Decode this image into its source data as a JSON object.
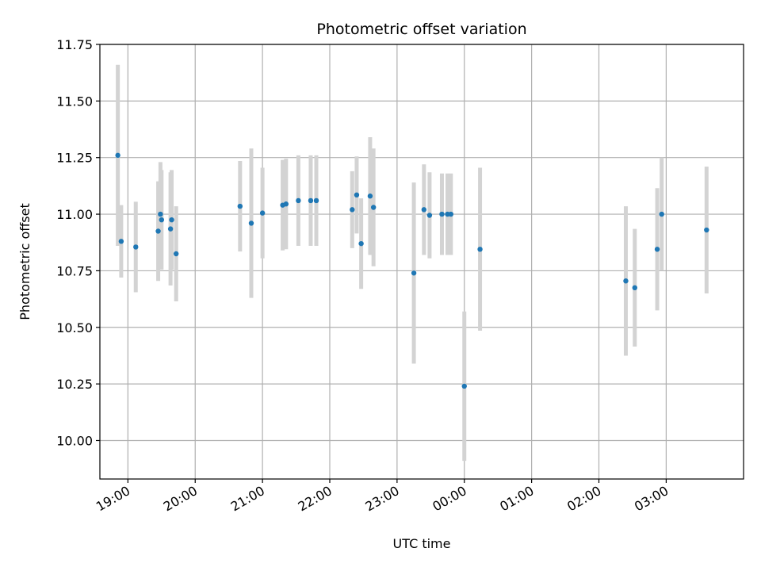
{
  "chart_data": {
    "type": "scatter",
    "title": "Photometric offset variation",
    "xlabel": "UTC time",
    "ylabel": "Photometric offset",
    "grid": true,
    "colors": {
      "points": "#1f77b4",
      "errorbars": "#d3d3d3",
      "grid": "#b0b0b0"
    },
    "xlim": [
      "18:35",
      "04:09"
    ],
    "ylim": [
      9.83,
      11.75
    ],
    "x_ticks": [
      "19:00",
      "20:00",
      "21:00",
      "22:00",
      "23:00",
      "00:00",
      "01:00",
      "02:00",
      "03:00"
    ],
    "y_ticks": [
      "10.00",
      "10.25",
      "10.50",
      "10.75",
      "11.00",
      "11.25",
      "11.50",
      "11.75"
    ],
    "points": [
      {
        "x": "18:51",
        "y": 11.26,
        "err": 0.4
      },
      {
        "x": "18:54",
        "y": 10.88,
        "err": 0.16
      },
      {
        "x": "19:07",
        "y": 10.855,
        "err": 0.2
      },
      {
        "x": "19:27",
        "y": 10.925,
        "err": 0.22
      },
      {
        "x": "19:29",
        "y": 11.0,
        "err": 0.23
      },
      {
        "x": "19:30",
        "y": 10.975,
        "err": 0.22
      },
      {
        "x": "19:38",
        "y": 10.935,
        "err": 0.25
      },
      {
        "x": "19:39",
        "y": 10.975,
        "err": 0.22
      },
      {
        "x": "19:43",
        "y": 10.825,
        "err": 0.21
      },
      {
        "x": "20:40",
        "y": 11.035,
        "err": 0.2
      },
      {
        "x": "20:50",
        "y": 10.96,
        "err": 0.33
      },
      {
        "x": "21:00",
        "y": 11.005,
        "err": 0.2
      },
      {
        "x": "21:18",
        "y": 11.04,
        "err": 0.2
      },
      {
        "x": "21:21",
        "y": 11.045,
        "err": 0.2
      },
      {
        "x": "21:32",
        "y": 11.06,
        "err": 0.2
      },
      {
        "x": "21:43",
        "y": 11.06,
        "err": 0.2
      },
      {
        "x": "21:48",
        "y": 11.06,
        "err": 0.2
      },
      {
        "x": "22:20",
        "y": 11.02,
        "err": 0.17
      },
      {
        "x": "22:24",
        "y": 11.085,
        "err": 0.17
      },
      {
        "x": "22:28",
        "y": 10.87,
        "err": 0.2
      },
      {
        "x": "22:36",
        "y": 11.08,
        "err": 0.26
      },
      {
        "x": "22:39",
        "y": 11.03,
        "err": 0.26
      },
      {
        "x": "23:15",
        "y": 10.74,
        "err": 0.4
      },
      {
        "x": "23:24",
        "y": 11.02,
        "err": 0.2
      },
      {
        "x": "23:29",
        "y": 10.995,
        "err": 0.19
      },
      {
        "x": "23:40",
        "y": 11.0,
        "err": 0.18
      },
      {
        "x": "23:45",
        "y": 11.0,
        "err": 0.18
      },
      {
        "x": "23:48",
        "y": 11.0,
        "err": 0.18
      },
      {
        "x": "00:00",
        "y": 10.24,
        "err": 0.33
      },
      {
        "x": "00:14",
        "y": 10.845,
        "err": 0.36
      },
      {
        "x": "02:24",
        "y": 10.705,
        "err": 0.33
      },
      {
        "x": "02:32",
        "y": 10.675,
        "err": 0.26
      },
      {
        "x": "02:52",
        "y": 10.845,
        "err": 0.27
      },
      {
        "x": "02:56",
        "y": 11.0,
        "err": 0.25
      },
      {
        "x": "03:36",
        "y": 10.93,
        "err": 0.28
      }
    ]
  }
}
